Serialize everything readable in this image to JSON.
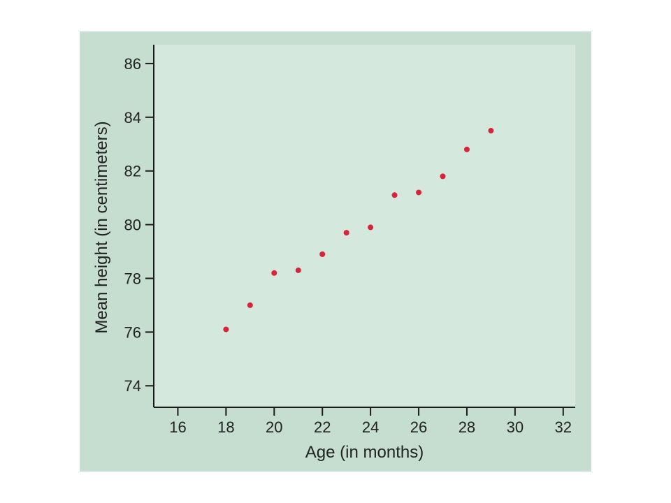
{
  "chart_data": {
    "type": "scatter",
    "xlabel": "Age (in months)",
    "ylabel": "Mean height (in centimeters)",
    "xlim": [
      15,
      32.5
    ],
    "ylim": [
      73.2,
      86.7
    ],
    "xticks": [
      16,
      18,
      20,
      22,
      24,
      26,
      28,
      30,
      32
    ],
    "yticks": [
      74,
      76,
      78,
      80,
      82,
      84,
      86
    ],
    "grid": false,
    "series": [
      {
        "x": [
          18,
          19,
          20,
          21,
          22,
          23,
          24,
          25,
          26,
          27,
          28,
          29
        ],
        "y": [
          76.1,
          77.0,
          78.2,
          78.3,
          78.9,
          79.7,
          79.9,
          81.1,
          81.2,
          81.8,
          82.8,
          83.5
        ]
      }
    ],
    "colors": {
      "outer_background": "#c6ded0",
      "plot_background": "#d5e8de",
      "axis": "#1a1a1a",
      "point": "#d8243a"
    }
  }
}
